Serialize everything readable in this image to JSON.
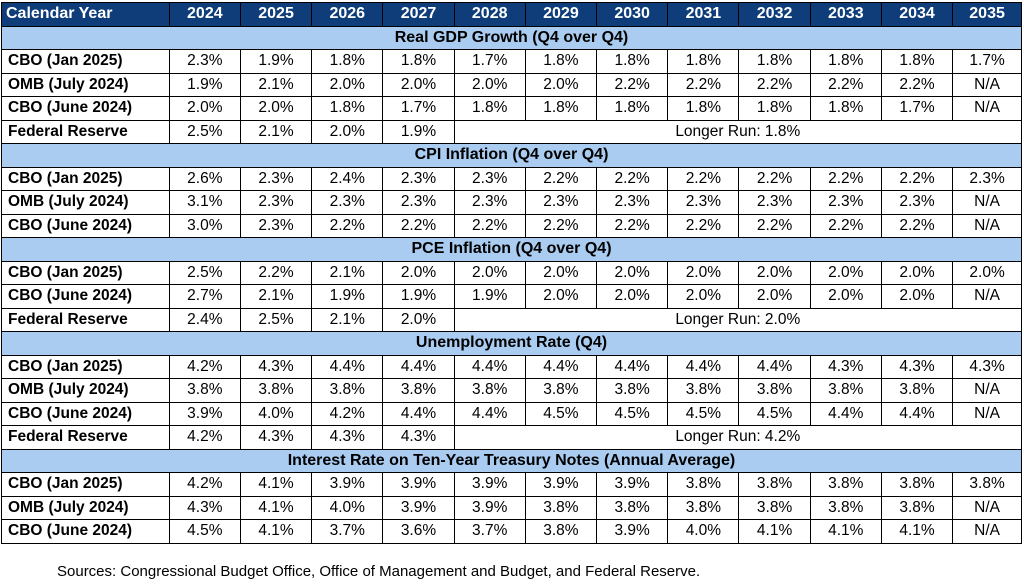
{
  "header": {
    "label": "Calendar Year",
    "years": [
      "2024",
      "2025",
      "2026",
      "2027",
      "2028",
      "2029",
      "2030",
      "2031",
      "2032",
      "2033",
      "2034",
      "2035"
    ]
  },
  "sections": [
    {
      "title": "Real GDP Growth (Q4 over Q4)",
      "rows": [
        {
          "label": "CBO (Jan 2025)",
          "values": [
            "2.3%",
            "1.9%",
            "1.8%",
            "1.8%",
            "1.7%",
            "1.8%",
            "1.8%",
            "1.8%",
            "1.8%",
            "1.8%",
            "1.8%",
            "1.7%"
          ]
        },
        {
          "label": "OMB (July 2024)",
          "values": [
            "1.9%",
            "2.1%",
            "2.0%",
            "2.0%",
            "2.0%",
            "2.0%",
            "2.2%",
            "2.2%",
            "2.2%",
            "2.2%",
            "2.2%",
            "N/A"
          ]
        },
        {
          "label": "CBO (June 2024)",
          "values": [
            "2.0%",
            "2.0%",
            "1.8%",
            "1.7%",
            "1.8%",
            "1.8%",
            "1.8%",
            "1.8%",
            "1.8%",
            "1.8%",
            "1.7%",
            "N/A"
          ]
        },
        {
          "label": "Federal Reserve",
          "values": [
            "2.5%",
            "2.1%",
            "2.0%",
            "1.9%"
          ],
          "longer_run": "Longer Run: 1.8%"
        }
      ]
    },
    {
      "title": "CPI Inflation (Q4 over Q4)",
      "rows": [
        {
          "label": "CBO (Jan 2025)",
          "values": [
            "2.6%",
            "2.3%",
            "2.4%",
            "2.3%",
            "2.3%",
            "2.2%",
            "2.2%",
            "2.2%",
            "2.2%",
            "2.2%",
            "2.2%",
            "2.3%"
          ]
        },
        {
          "label": "OMB (July 2024)",
          "values": [
            "3.1%",
            "2.3%",
            "2.3%",
            "2.3%",
            "2.3%",
            "2.3%",
            "2.3%",
            "2.3%",
            "2.3%",
            "2.3%",
            "2.3%",
            "N/A"
          ]
        },
        {
          "label": "CBO (June 2024)",
          "values": [
            "3.0%",
            "2.3%",
            "2.2%",
            "2.2%",
            "2.2%",
            "2.2%",
            "2.2%",
            "2.2%",
            "2.2%",
            "2.2%",
            "2.2%",
            "N/A"
          ]
        }
      ]
    },
    {
      "title": "PCE Inflation (Q4 over Q4)",
      "rows": [
        {
          "label": "CBO (Jan 2025)",
          "values": [
            "2.5%",
            "2.2%",
            "2.1%",
            "2.0%",
            "2.0%",
            "2.0%",
            "2.0%",
            "2.0%",
            "2.0%",
            "2.0%",
            "2.0%",
            "2.0%"
          ]
        },
        {
          "label": "CBO (June 2024)",
          "values": [
            "2.7%",
            "2.1%",
            "1.9%",
            "1.9%",
            "1.9%",
            "2.0%",
            "2.0%",
            "2.0%",
            "2.0%",
            "2.0%",
            "2.0%",
            "N/A"
          ]
        },
        {
          "label": "Federal Reserve",
          "values": [
            "2.4%",
            "2.5%",
            "2.1%",
            "2.0%"
          ],
          "longer_run": "Longer Run: 2.0%"
        }
      ]
    },
    {
      "title": "Unemployment Rate (Q4)",
      "rows": [
        {
          "label": "CBO (Jan 2025)",
          "values": [
            "4.2%",
            "4.3%",
            "4.4%",
            "4.4%",
            "4.4%",
            "4.4%",
            "4.4%",
            "4.4%",
            "4.4%",
            "4.3%",
            "4.3%",
            "4.3%"
          ]
        },
        {
          "label": "OMB (July 2024)",
          "values": [
            "3.8%",
            "3.8%",
            "3.8%",
            "3.8%",
            "3.8%",
            "3.8%",
            "3.8%",
            "3.8%",
            "3.8%",
            "3.8%",
            "3.8%",
            "N/A"
          ]
        },
        {
          "label": "CBO (June 2024)",
          "values": [
            "3.9%",
            "4.0%",
            "4.2%",
            "4.4%",
            "4.4%",
            "4.5%",
            "4.5%",
            "4.5%",
            "4.5%",
            "4.4%",
            "4.4%",
            "N/A"
          ]
        },
        {
          "label": "Federal Reserve",
          "values": [
            "4.2%",
            "4.3%",
            "4.3%",
            "4.3%"
          ],
          "longer_run": "Longer Run: 4.2%"
        }
      ]
    },
    {
      "title": "Interest Rate on Ten-Year Treasury Notes (Annual Average)",
      "rows": [
        {
          "label": "CBO (Jan 2025)",
          "values": [
            "4.2%",
            "4.1%",
            "3.9%",
            "3.9%",
            "3.9%",
            "3.9%",
            "3.9%",
            "3.8%",
            "3.8%",
            "3.8%",
            "3.8%",
            "3.8%"
          ]
        },
        {
          "label": "OMB (July 2024)",
          "values": [
            "4.3%",
            "4.1%",
            "4.0%",
            "3.9%",
            "3.9%",
            "3.8%",
            "3.8%",
            "3.8%",
            "3.8%",
            "3.8%",
            "3.8%",
            "N/A"
          ]
        },
        {
          "label": "CBO (June 2024)",
          "values": [
            "4.5%",
            "4.1%",
            "3.7%",
            "3.6%",
            "3.7%",
            "3.8%",
            "3.9%",
            "4.0%",
            "4.1%",
            "4.1%",
            "4.1%",
            "N/A"
          ]
        }
      ]
    }
  ],
  "colors": {
    "header_bg": "#0f3d7a",
    "section_bg": "#a9ccf0"
  },
  "source": "Sources: Congressional Budget Office, Office of Management and Budget, and Federal Reserve."
}
